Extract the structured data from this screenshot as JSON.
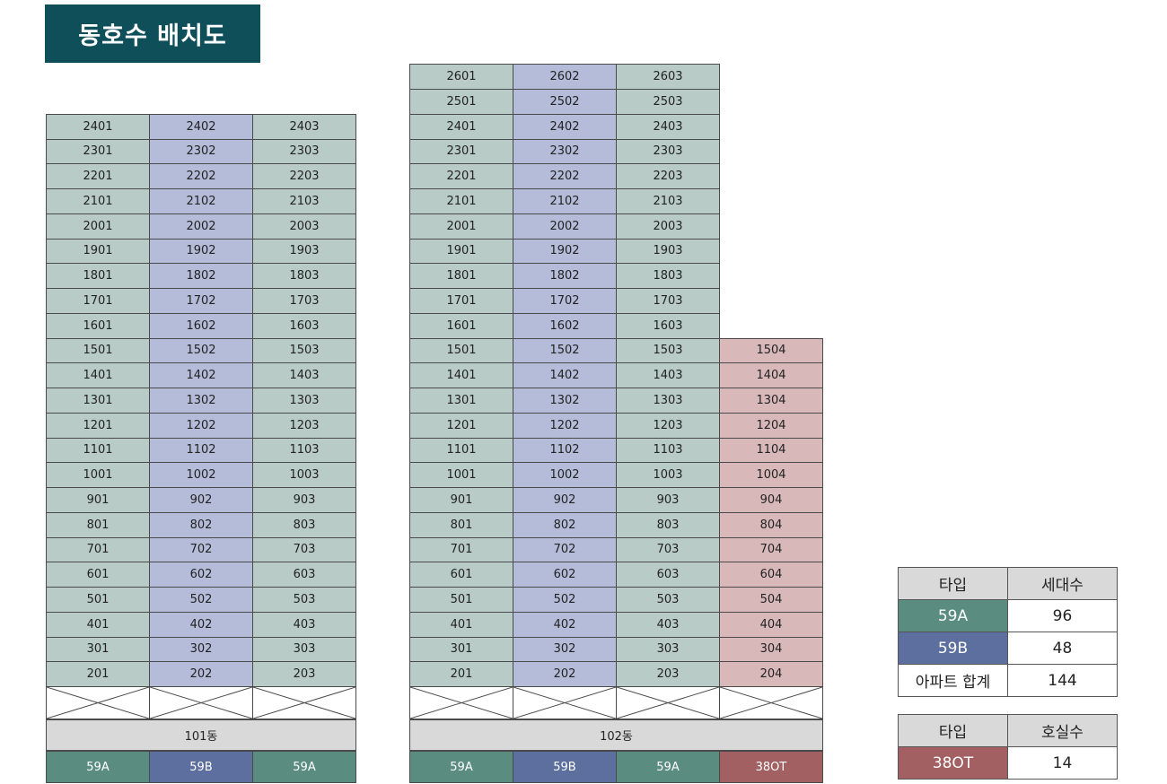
{
  "title": "동호수 배치도",
  "colors": {
    "59A": "#5b8c80",
    "59B": "#5c6f9e",
    "38OT": "#a36063"
  },
  "buildings": [
    {
      "name": "101동",
      "floors": [
        "2401",
        "2301",
        "2201",
        "2101",
        "2001",
        "1901",
        "1801",
        "1701",
        "1601",
        "1501",
        "1401",
        "1301",
        "1201",
        "1101",
        "1001",
        "901",
        "801",
        "701",
        "601",
        "501",
        "401",
        "301",
        "201"
      ],
      "lines": [
        {
          "type": "59A",
          "units": [
            "2401",
            "2301",
            "2201",
            "2101",
            "2001",
            "1901",
            "1801",
            "1701",
            "1601",
            "1501",
            "1401",
            "1301",
            "1201",
            "1101",
            "1001",
            "901",
            "801",
            "701",
            "601",
            "501",
            "401",
            "301",
            "201"
          ]
        },
        {
          "type": "59B",
          "units": [
            "2402",
            "2302",
            "2202",
            "2102",
            "2002",
            "1902",
            "1802",
            "1702",
            "1602",
            "1502",
            "1402",
            "1302",
            "1202",
            "1102",
            "1002",
            "902",
            "802",
            "702",
            "602",
            "502",
            "402",
            "302",
            "202"
          ]
        },
        {
          "type": "59A",
          "units": [
            "2403",
            "2303",
            "2203",
            "2103",
            "2003",
            "1903",
            "1803",
            "1703",
            "1603",
            "1503",
            "1403",
            "1303",
            "1203",
            "1103",
            "1003",
            "903",
            "803",
            "703",
            "603",
            "503",
            "403",
            "303",
            "203"
          ]
        }
      ]
    },
    {
      "name": "102동",
      "lines": [
        {
          "type": "59A",
          "units": [
            "2601",
            "2501",
            "2401",
            "2301",
            "2201",
            "2101",
            "2001",
            "1901",
            "1801",
            "1701",
            "1601",
            "1501",
            "1401",
            "1301",
            "1201",
            "1101",
            "1001",
            "901",
            "801",
            "701",
            "601",
            "501",
            "401",
            "301",
            "201"
          ]
        },
        {
          "type": "59B",
          "units": [
            "2602",
            "2502",
            "2402",
            "2302",
            "2202",
            "2102",
            "2002",
            "1902",
            "1802",
            "1702",
            "1602",
            "1502",
            "1402",
            "1302",
            "1202",
            "1102",
            "1002",
            "902",
            "802",
            "702",
            "602",
            "502",
            "402",
            "302",
            "202"
          ]
        },
        {
          "type": "59A",
          "units": [
            "2603",
            "2503",
            "2403",
            "2303",
            "2203",
            "2103",
            "2003",
            "1903",
            "1803",
            "1703",
            "1603",
            "1503",
            "1403",
            "1303",
            "1203",
            "1103",
            "1003",
            "903",
            "803",
            "703",
            "603",
            "503",
            "403",
            "303",
            "203"
          ]
        },
        {
          "type": "38OT",
          "units": [
            "1504",
            "1404",
            "1304",
            "1204",
            "1104",
            "1004",
            "904",
            "804",
            "704",
            "604",
            "504",
            "404",
            "304",
            "204"
          ]
        }
      ]
    }
  ],
  "legend_apt": {
    "header": [
      "타입",
      "세대수"
    ],
    "rows": [
      {
        "type": "59A",
        "count": "96"
      },
      {
        "type": "59B",
        "count": "48"
      }
    ],
    "total_label": "아파트 합계",
    "total": "144"
  },
  "legend_ot": {
    "header": [
      "타입",
      "호실수"
    ],
    "rows": [
      {
        "type": "38OT",
        "count": "14"
      }
    ]
  }
}
